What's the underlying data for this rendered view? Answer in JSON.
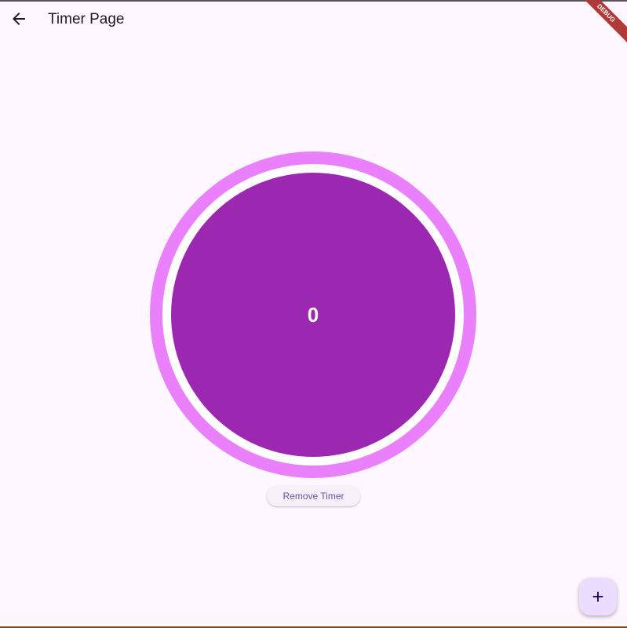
{
  "app_bar": {
    "title": "Timer Page",
    "back_icon": "arrow-back-icon"
  },
  "debug_banner": "DEBUG",
  "timer": {
    "value": "0",
    "inner_color": "#9c27b0",
    "ring_color": "#ea80fc"
  },
  "remove_button": {
    "label": "Remove Timer"
  },
  "fab": {
    "icon": "plus-icon",
    "glyph": "+"
  }
}
